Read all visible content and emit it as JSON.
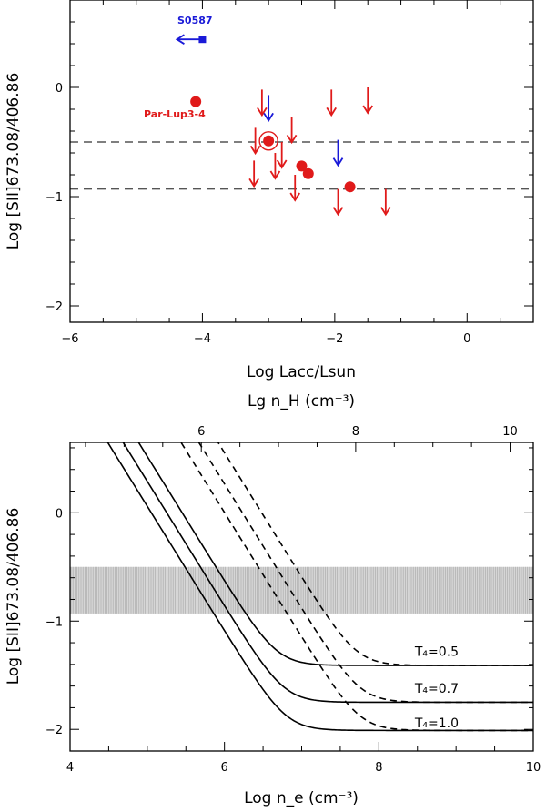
{
  "chart_data": [
    {
      "type": "scatter",
      "xlabel": "Log Lacc/Lsun",
      "ylabel": "Log [SII]673.08/406.86",
      "xlim": [
        -6,
        1
      ],
      "ylim": [
        -2.15,
        0.8
      ],
      "xticks": [
        -6,
        -4,
        -2,
        0
      ],
      "yticks": [
        -2,
        -1,
        0
      ],
      "xtick_labels": [
        "−6",
        "−4",
        "−2",
        "0"
      ],
      "ytick_labels": [
        "−2",
        "−1",
        "0"
      ],
      "hlines": [
        -0.5,
        -0.93
      ],
      "colors": {
        "red": "#e01a1a",
        "blue": "#1a1ad8",
        "line": "#555555"
      },
      "detections": [
        {
          "x": -4.1,
          "y": -0.13
        },
        {
          "x": -3.0,
          "y": -0.49
        },
        {
          "x": -2.5,
          "y": -0.72
        },
        {
          "x": -2.4,
          "y": -0.79
        },
        {
          "x": -1.77,
          "y": -0.91
        }
      ],
      "circled_detection": {
        "x": -3.0,
        "y": -0.49
      },
      "upper_limits_red": [
        {
          "x": -3.1,
          "y": -0.02
        },
        {
          "x": -2.05,
          "y": -0.02
        },
        {
          "x": -1.5,
          "y": 0.0
        },
        {
          "x": -2.65,
          "y": -0.27
        },
        {
          "x": -3.2,
          "y": -0.37
        },
        {
          "x": -2.8,
          "y": -0.5
        },
        {
          "x": -3.22,
          "y": -0.67
        },
        {
          "x": -2.9,
          "y": -0.6
        },
        {
          "x": -2.6,
          "y": -0.8
        },
        {
          "x": -1.95,
          "y": -0.93
        },
        {
          "x": -1.23,
          "y": -0.93
        }
      ],
      "upper_limits_blue": [
        {
          "x": -3.0,
          "y": -0.07
        },
        {
          "x": -1.95,
          "y": -0.48
        }
      ],
      "left_limit_blue": {
        "x": -4.0,
        "y": 0.44,
        "label": "S0587"
      },
      "annotations": [
        {
          "text": "S0587",
          "x": -4.4,
          "y": 0.57,
          "color": "blue"
        },
        {
          "text": "Par-Lup3-4",
          "x": -4.1,
          "y": -0.29,
          "color": "red"
        }
      ]
    },
    {
      "type": "line",
      "xlabel": "Log n_e (cm⁻³)",
      "top_xlabel": "Lg n_H (cm⁻³)",
      "ylabel": "Log [SII]673.08/406.86",
      "xlim": [
        4,
        10
      ],
      "ylim": [
        -2.2,
        0.65
      ],
      "xticks": [
        4,
        6,
        8,
        10
      ],
      "xtick_labels": [
        "4",
        "6",
        "8",
        "10"
      ],
      "yticks": [
        -2,
        -1,
        0
      ],
      "ytick_labels": [
        "−2",
        "−1",
        "0"
      ],
      "top_xticks": [
        6,
        8,
        10
      ],
      "top_xtick_labels": [
        "6",
        "8",
        "10"
      ],
      "top_axis_offset": 0.3,
      "shaded_band": [
        -0.5,
        -0.93
      ],
      "colors": {
        "band": "#bdbdbd",
        "line": "#000000"
      },
      "series": [
        {
          "name": "T4=0.5",
          "style": "solid",
          "x0": 4.67,
          "floor": -1.41
        },
        {
          "name": "T4=0.7",
          "style": "solid",
          "x0": 4.47,
          "floor": -1.75
        },
        {
          "name": "T4=1.0",
          "style": "solid",
          "x0": 4.27,
          "floor": -2.01
        },
        {
          "name": "T4=0.5 dashed",
          "style": "dashed",
          "x0": 5.7,
          "floor": -1.41
        },
        {
          "name": "T4=0.7 dashed",
          "style": "dashed",
          "x0": 5.45,
          "floor": -1.75
        },
        {
          "name": "T4=1.0 dashed",
          "style": "dashed",
          "x0": 5.22,
          "floor": -2.01
        }
      ],
      "curve_labels": [
        {
          "text": "T₄=0.5",
          "x": 8.75,
          "y": -1.32
        },
        {
          "text": "T₄=0.7",
          "x": 8.75,
          "y": -1.66
        },
        {
          "text": "T₄=1.0",
          "x": 8.75,
          "y": -1.98
        }
      ]
    }
  ]
}
